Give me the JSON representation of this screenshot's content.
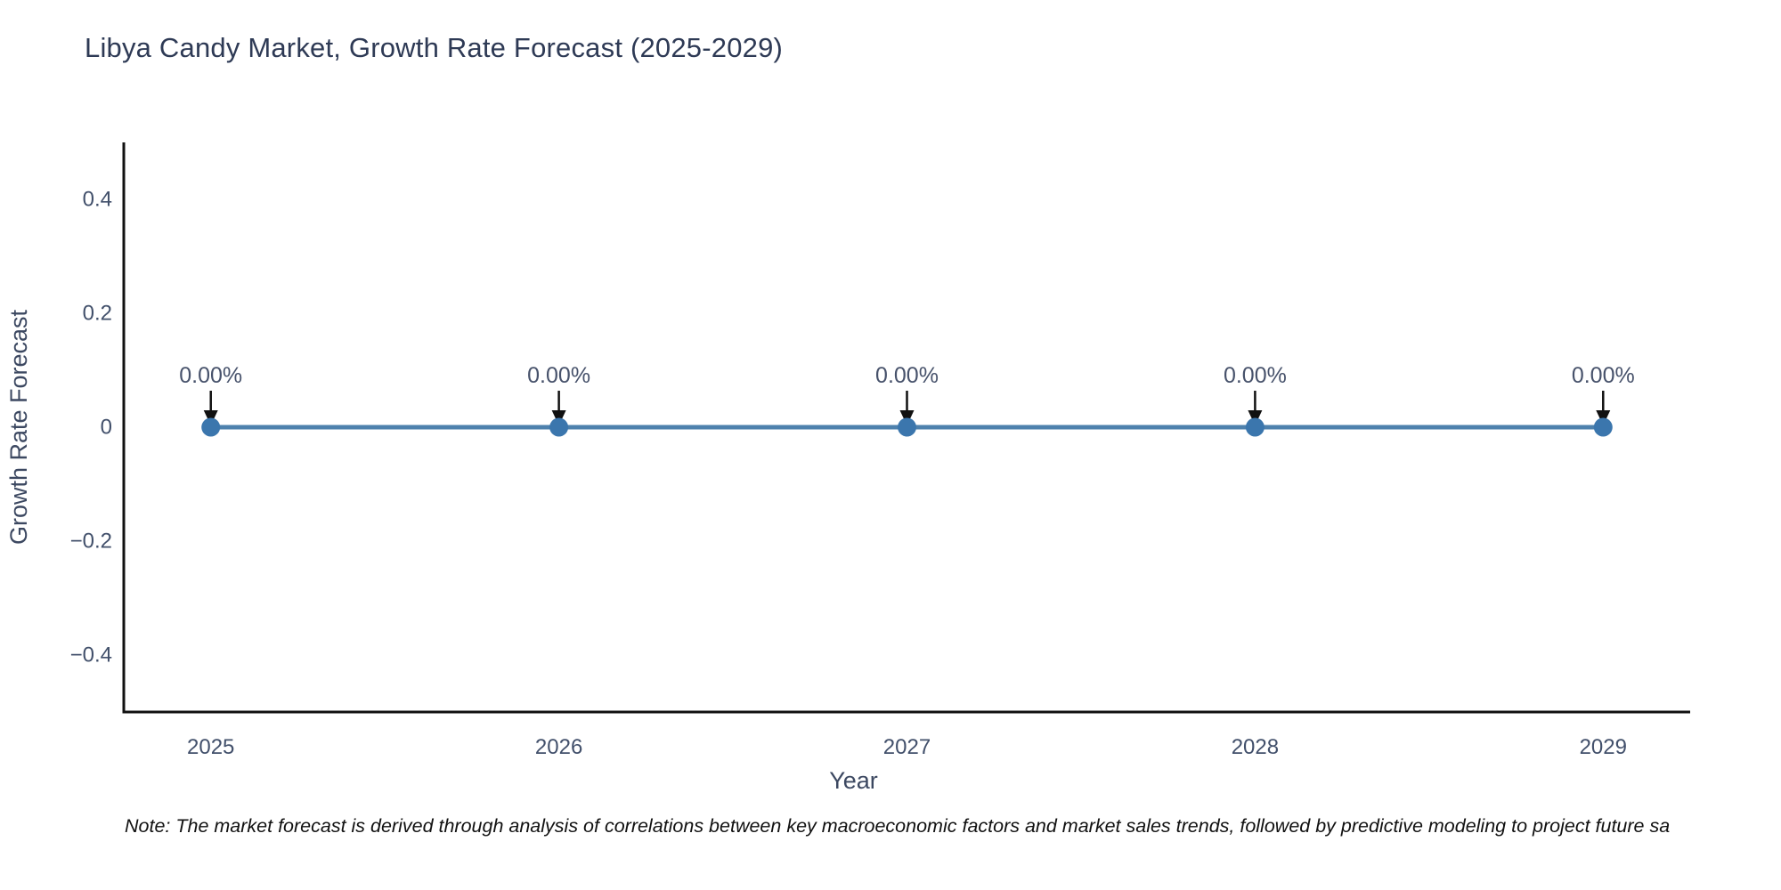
{
  "header": {
    "title_color": "#2e3a55"
  },
  "chart_data": {
    "type": "line",
    "title": "Libya Candy Market, Growth Rate Forecast (2025-2029)",
    "xlabel": "Year",
    "ylabel": "Growth Rate Forecast",
    "x": [
      2025,
      2026,
      2027,
      2028,
      2029
    ],
    "series": [
      {
        "name": "Growth Rate Forecast",
        "values": [
          0,
          0,
          0,
          0,
          0
        ]
      }
    ],
    "point_labels": [
      "0.00%",
      "0.00%",
      "0.00%",
      "0.00%",
      "0.00%"
    ],
    "xlim": [
      2024.75,
      2029.25
    ],
    "ylim": [
      -0.5,
      0.5
    ],
    "xticks": [
      2025,
      2026,
      2027,
      2028,
      2029
    ],
    "xtick_labels": [
      "2025",
      "2026",
      "2027",
      "2028",
      "2029"
    ],
    "yticks": [
      0.4,
      0.2,
      0,
      -0.2,
      -0.4
    ],
    "ytick_labels": [
      "0.4",
      "0.2",
      "0",
      "−0.2",
      "−0.4"
    ],
    "grid": false,
    "legend": "none",
    "colors": {
      "line": "#4e81ad",
      "marker": "#3b76ad",
      "axis": "#111111",
      "tick_label": "#42506b",
      "axis_label": "#3c4861",
      "annotation_text": "#47526b",
      "annotation_arrow": "#111111"
    }
  },
  "footer": {
    "note": "Note: The market forecast is derived through analysis of correlations between key macroeconomic factors and market sales trends, followed by predictive modeling to project future sa"
  }
}
